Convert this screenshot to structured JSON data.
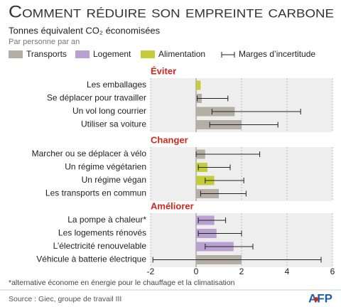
{
  "chart_data": {
    "type": "bar",
    "orientation": "horizontal",
    "title": "Comment réduire son empreinte carbone",
    "subtitle": "Tonnes équivalent CO₂ économisées",
    "unit_note": "Par personne par an",
    "series": [
      {
        "name": "Transports",
        "color": "#b5aea5"
      },
      {
        "name": "Logement",
        "color": "#b9a2d1"
      },
      {
        "name": "Alimentation",
        "color": "#c5cc3c"
      }
    ],
    "error_label": "Marges d’incertitude",
    "groups": [
      {
        "name": "Éviter",
        "items": [
          {
            "label": "Les emballages",
            "series": 2,
            "value": 0.2,
            "low": null,
            "high": null
          },
          {
            "label": "Se déplacer pour travailler",
            "series": 0,
            "value": 0.25,
            "low": 0.05,
            "high": 1.4
          },
          {
            "label": "Un vol long courrier",
            "series": 0,
            "value": 1.7,
            "low": 0.7,
            "high": 4.6
          },
          {
            "label": "Utiliser sa voiture",
            "series": 0,
            "value": 2.0,
            "low": 0.6,
            "high": 3.6
          }
        ]
      },
      {
        "name": "Changer",
        "items": [
          {
            "label": "Marcher ou se déplacer à vélo",
            "series": 0,
            "value": 0.4,
            "low": 0,
            "high": 2.8
          },
          {
            "label": "Un régime végétarien",
            "series": 2,
            "value": 0.5,
            "low": 0.1,
            "high": 1.5
          },
          {
            "label": "Un régime végan",
            "series": 2,
            "value": 0.8,
            "low": 0.4,
            "high": 2.1
          },
          {
            "label": "Les transports en commun",
            "series": 0,
            "value": 1.0,
            "low": 0.2,
            "high": 2.2
          }
        ]
      },
      {
        "name": "Améliorer",
        "items": [
          {
            "label": "La pompe à chaleur*",
            "series": 1,
            "value": 0.8,
            "low": 0.1,
            "high": 1.3
          },
          {
            "label": "Les logements rénovés",
            "series": 1,
            "value": 0.9,
            "low": 0.1,
            "high": 2.0
          },
          {
            "label": "L’électricité renouvelable",
            "series": 1,
            "value": 1.65,
            "low": 0.4,
            "high": 2.5
          },
          {
            "label": "Véhicule à batterie électrique",
            "series": 0,
            "value": 2.0,
            "low": -1.9,
            "high": 5.5
          }
        ]
      }
    ],
    "xlim": [
      -2,
      6
    ],
    "xticks": [
      -2,
      0,
      2,
      4,
      6
    ],
    "grid": true,
    "footnote": "*alternative économe en énergie pour le chauffage et la climatisation",
    "source": "Source : Giec, groupe de travail III",
    "logo": "AFP"
  }
}
